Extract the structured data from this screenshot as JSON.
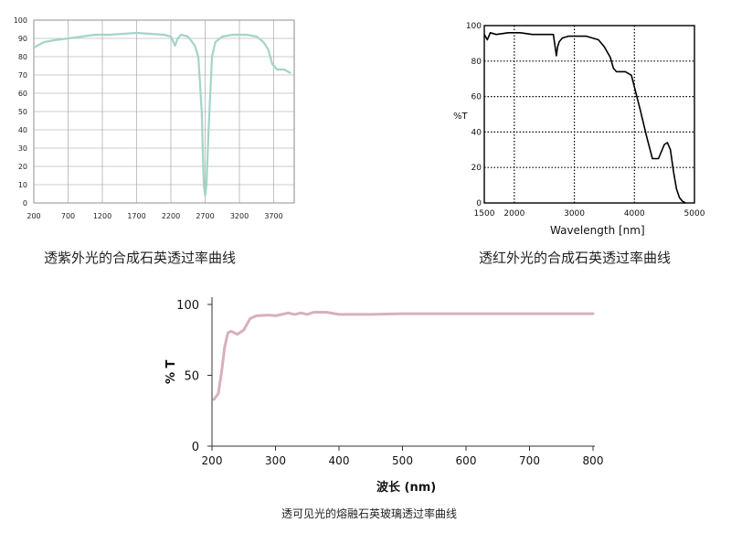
{
  "captions": {
    "uv": "透紫外光的合成石英透过率曲线",
    "ir": "透红外光的合成石英透过率曲线",
    "vis": "透可见光的熔融石英玻璃透过率曲线"
  },
  "chart_data": [
    {
      "type": "line",
      "title": "",
      "xlabel": "",
      "ylabel": "",
      "xlim": [
        200,
        4000
      ],
      "ylim": [
        0,
        100
      ],
      "grid": true,
      "line_color": "#a3d4c8",
      "x_ticks": [
        "200",
        "700",
        "1200",
        "1700",
        "2200",
        "2700",
        "3200",
        "3700"
      ],
      "y_ticks": [
        "0",
        "10",
        "20",
        "30",
        "40",
        "50",
        "60",
        "70",
        "80",
        "90",
        "100"
      ],
      "series": [
        {
          "x": [
            200,
            350,
            500,
            700,
            900,
            1100,
            1300,
            1500,
            1700,
            1900,
            2100,
            2200,
            2260,
            2300,
            2350,
            2450,
            2550,
            2600,
            2650,
            2680,
            2700,
            2720,
            2750,
            2800,
            2850,
            2950,
            3100,
            3300,
            3450,
            3550,
            3620,
            3680,
            3750,
            3850,
            3950
          ],
          "y": [
            85,
            88,
            89,
            90,
            91,
            92,
            92,
            92.5,
            93,
            92.5,
            92,
            91,
            86,
            90,
            92,
            91,
            86,
            80,
            50,
            10,
            4,
            10,
            40,
            80,
            88,
            91,
            92,
            92,
            91,
            88,
            84,
            76,
            73,
            73,
            71
          ]
        }
      ]
    },
    {
      "type": "line",
      "title": "",
      "xlabel": "Wavelength [nm]",
      "ylabel": "%T",
      "xlim": [
        1500,
        5000
      ],
      "ylim": [
        0,
        100
      ],
      "grid": true,
      "line_color": "#000000",
      "x_ticks": [
        "1500",
        "2000",
        "3000",
        "4000",
        "5000"
      ],
      "y_ticks": [
        "0",
        "20",
        "40",
        "60",
        "80",
        "100"
      ],
      "series": [
        {
          "x": [
            1500,
            1550,
            1600,
            1700,
            1900,
            2100,
            2300,
            2500,
            2650,
            2700,
            2720,
            2750,
            2800,
            2900,
            3000,
            3200,
            3400,
            3500,
            3600,
            3650,
            3700,
            3850,
            3950,
            4100,
            4200,
            4300,
            4400,
            4500,
            4550,
            4600,
            4650,
            4700,
            4750,
            4800,
            4850
          ],
          "y": [
            95,
            92,
            96,
            95,
            96,
            96,
            95,
            95,
            95,
            83,
            88,
            91,
            93,
            94,
            94,
            94,
            92,
            88,
            82,
            76,
            74,
            74,
            72,
            52,
            38,
            25,
            25,
            33,
            34,
            30,
            18,
            8,
            3,
            1,
            0
          ]
        }
      ]
    },
    {
      "type": "line",
      "title": "",
      "xlabel": "波长 (nm)",
      "ylabel": "% T",
      "xlim": [
        200,
        800
      ],
      "ylim": [
        0,
        100
      ],
      "grid": false,
      "line_color": "#d6b1bd",
      "x_ticks": [
        "200",
        "300",
        "400",
        "500",
        "600",
        "700",
        "800"
      ],
      "y_ticks": [
        "0",
        "50",
        "100"
      ],
      "series": [
        {
          "x": [
            203,
            210,
            215,
            220,
            225,
            230,
            240,
            250,
            260,
            270,
            290,
            300,
            310,
            320,
            330,
            340,
            350,
            360,
            380,
            400,
            450,
            500,
            600,
            700,
            800
          ],
          "y": [
            33,
            37,
            52,
            70,
            80,
            81,
            79,
            82,
            90,
            92,
            92.5,
            92,
            93,
            94,
            93,
            94,
            93,
            94.5,
            94.5,
            93,
            93,
            93.5,
            93.5,
            93.5,
            93.5
          ]
        }
      ]
    }
  ]
}
